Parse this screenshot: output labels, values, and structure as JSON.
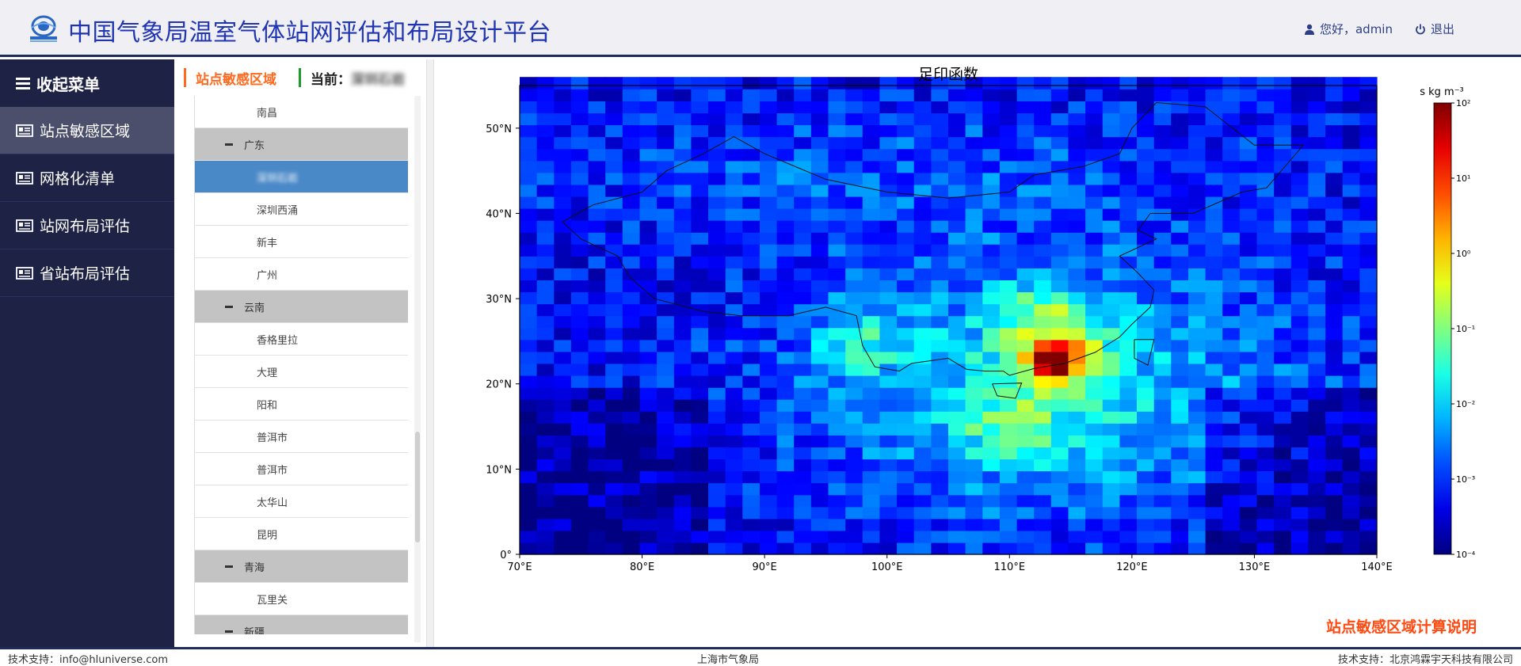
{
  "header": {
    "title": "中国气象局温室气体站网评估和布局设计平台",
    "greeting": "您好，admin",
    "logout": "退出"
  },
  "sidebar": {
    "toggle_label": "收起菜单",
    "items": [
      {
        "label": "站点敏感区域",
        "active": true
      },
      {
        "label": "网格化清单",
        "active": false
      },
      {
        "label": "站网布局评估",
        "active": false
      },
      {
        "label": "省站布局评估",
        "active": false
      }
    ]
  },
  "panel": {
    "title": "站点敏感区域",
    "current_label": "当前：",
    "current_value": "深圳石岩"
  },
  "tree": [
    {
      "type": "leaf",
      "label": "南昌"
    },
    {
      "type": "group",
      "label": "广东"
    },
    {
      "type": "leaf",
      "label": "深圳石岩",
      "selected": true
    },
    {
      "type": "leaf",
      "label": "深圳西涌"
    },
    {
      "type": "leaf",
      "label": "新丰"
    },
    {
      "type": "leaf",
      "label": "广州"
    },
    {
      "type": "group",
      "label": "云南"
    },
    {
      "type": "leaf",
      "label": "香格里拉"
    },
    {
      "type": "leaf",
      "label": "大理"
    },
    {
      "type": "leaf",
      "label": "阳和"
    },
    {
      "type": "leaf",
      "label": "普洱市"
    },
    {
      "type": "leaf",
      "label": "普洱市"
    },
    {
      "type": "leaf",
      "label": "太华山"
    },
    {
      "type": "leaf",
      "label": "昆明"
    },
    {
      "type": "group",
      "label": "青海"
    },
    {
      "type": "leaf",
      "label": "瓦里关"
    },
    {
      "type": "group",
      "label": "新疆"
    }
  ],
  "chart_data": {
    "type": "heatmap",
    "title": "足印函数",
    "colorbar_label": "s kg m⁻³",
    "colorbar_scale": "log",
    "colorbar_ticks": [
      "10²",
      "10¹",
      "10⁰",
      "10⁻¹",
      "10⁻²",
      "10⁻³",
      "10⁻⁴"
    ],
    "x_ticks": [
      "70°E",
      "80°E",
      "90°E",
      "100°E",
      "110°E",
      "120°E",
      "130°E",
      "140°E"
    ],
    "y_ticks": [
      "0°",
      "10°N",
      "20°N",
      "30°N",
      "40°N",
      "50°N"
    ],
    "xlim": [
      70,
      140
    ],
    "ylim": [
      0,
      55
    ],
    "peak": {
      "lon": 113.9,
      "lat": 22.6,
      "level": 2
    },
    "hotspots": [
      {
        "lon": 114,
        "lat": 23,
        "level": 1.6
      },
      {
        "lon": 113,
        "lat": 28,
        "level": 1.0
      },
      {
        "lon": 98,
        "lat": 25,
        "level": 0.6
      },
      {
        "lon": 110,
        "lat": 15,
        "level": 0.5
      }
    ]
  },
  "explain_link": "站点敏感区域计算说明",
  "footer": {
    "left": "技术支持：info@hluniverse.com",
    "center": "上海市气象局",
    "right": "技术支持：北京鸿霖宇天科技有限公司"
  },
  "colors": {
    "accent": "#1f35b3",
    "sidebar_bg": "#1e2245",
    "selected_row": "#4a89c8",
    "orange": "#ff6a1e",
    "green": "#1f9a2c"
  }
}
